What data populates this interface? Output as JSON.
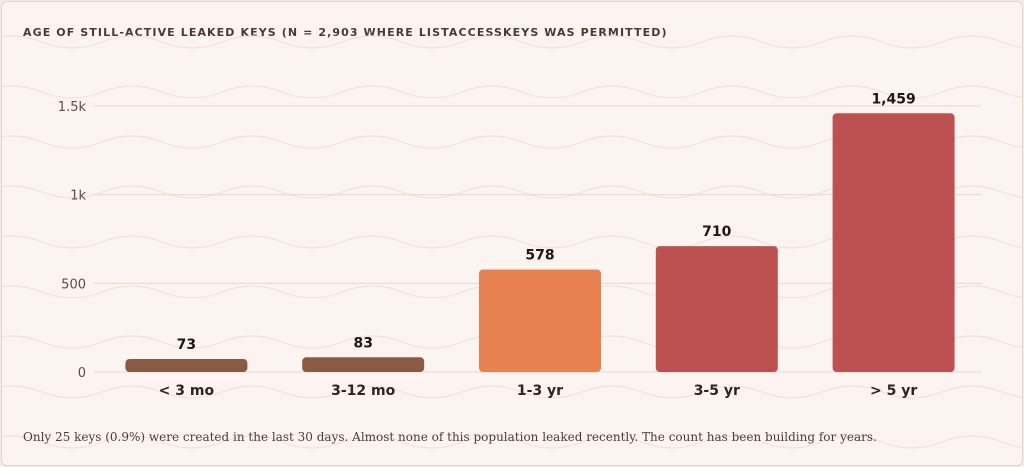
{
  "chart_data": {
    "type": "bar",
    "title": "AGE OF STILL-ACTIVE LEAKED KEYS (N = 2,903 WHERE LISTACCESSKEYS WAS PERMITTED)",
    "categories": [
      "< 3 mo",
      "3-12 mo",
      "1-3 yr",
      "3-5 yr",
      "> 5 yr"
    ],
    "values": [
      73,
      83,
      578,
      710,
      1459
    ],
    "data_labels": [
      "73",
      "83",
      "578",
      "710",
      "1,459"
    ],
    "colors": [
      "#8a5a45",
      "#8a5a45",
      "#e88152",
      "#bb5151",
      "#bb5151"
    ],
    "ylim": [
      0,
      1500
    ],
    "yticks": [
      0,
      500,
      1000,
      1500
    ],
    "ytick_labels": [
      "0",
      "500",
      "1k",
      "1.5k"
    ],
    "grid": true,
    "xlabel": "",
    "ylabel": ""
  },
  "caption": "Only 25 keys (0.9%) were created in the last 30 days. Almost none of this population leaked recently. The count has been building for years."
}
